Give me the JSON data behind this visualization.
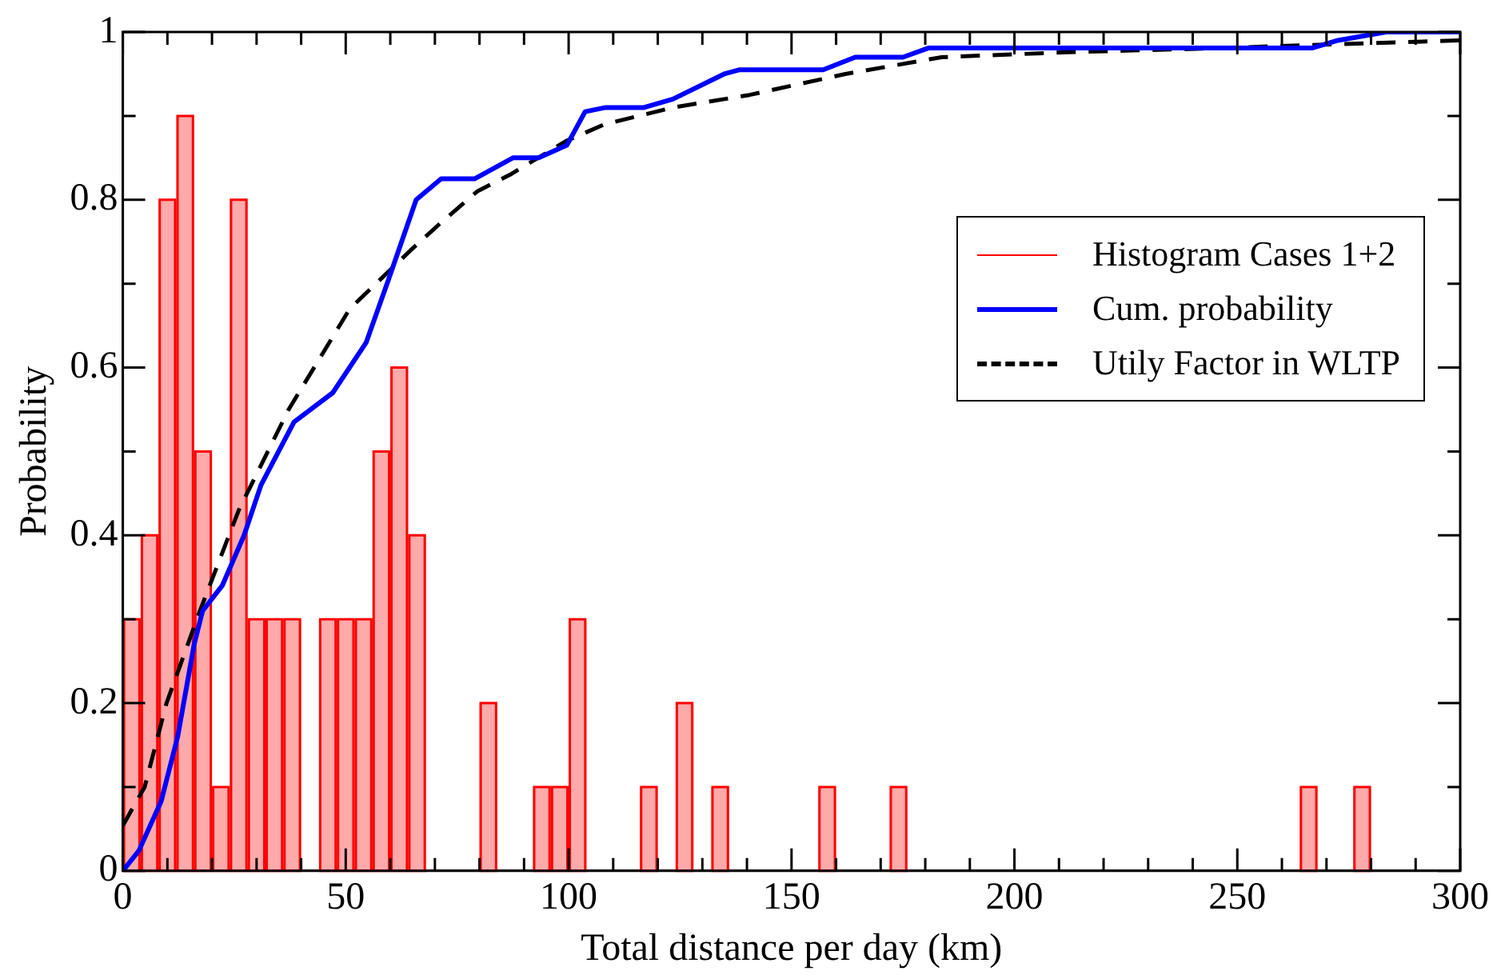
{
  "chart_data": {
    "type": "histogram",
    "xlabel": "Total distance per day (km)",
    "ylabel": "Probability",
    "xlim": [
      0,
      300
    ],
    "ylim": [
      0,
      1
    ],
    "xticks": [
      0,
      {
        "value": 10,
        "label": null
      },
      {
        "value": 20,
        "label": null
      },
      {
        "value": 30,
        "label": null
      },
      {
        "value": 40,
        "label": null
      },
      50,
      {
        "value": 60,
        "label": null
      },
      {
        "value": 70,
        "label": null
      },
      {
        "value": 80,
        "label": null
      },
      {
        "value": 90,
        "label": null
      },
      100,
      {
        "value": 110,
        "label": null
      },
      {
        "value": 120,
        "label": null
      },
      {
        "value": 130,
        "label": null
      },
      {
        "value": 140,
        "label": null
      },
      150,
      {
        "value": 160,
        "label": null
      },
      {
        "value": 170,
        "label": null
      },
      {
        "value": 180,
        "label": null
      },
      {
        "value": 190,
        "label": null
      },
      200,
      {
        "value": 210,
        "label": null
      },
      {
        "value": 220,
        "label": null
      },
      {
        "value": 230,
        "label": null
      },
      {
        "value": 240,
        "label": null
      },
      250,
      {
        "value": 260,
        "label": null
      },
      {
        "value": 270,
        "label": null
      },
      {
        "value": 280,
        "label": null
      },
      {
        "value": 290,
        "label": null
      },
      300
    ],
    "yticks": [
      0,
      {
        "value": 0.1,
        "label": null
      },
      0.2,
      {
        "value": 0.3,
        "label": null
      },
      0.4,
      {
        "value": 0.5,
        "label": null
      },
      0.6,
      {
        "value": 0.7,
        "label": null
      },
      0.8,
      {
        "value": 0.9,
        "label": null
      },
      1
    ],
    "grid": false,
    "legend": "right",
    "marker": "none",
    "series": [
      {
        "type": "histogram",
        "name": "Histogram Cases 1+2",
        "color": "#ff0000",
        "bins": [
          0,
          4,
          8,
          12,
          16,
          20,
          24,
          28,
          32,
          36,
          40,
          44,
          48,
          52,
          56,
          60,
          64,
          68,
          72,
          76,
          80,
          84,
          88,
          92,
          96,
          100,
          104,
          108,
          112,
          116,
          120,
          124,
          128,
          132,
          136,
          140,
          144,
          148,
          152,
          156,
          160,
          164,
          168,
          172,
          176,
          180,
          184,
          188,
          192,
          196,
          200,
          204,
          208,
          212,
          216,
          220,
          224,
          228,
          232,
          236,
          240,
          244,
          248,
          252,
          256,
          260,
          264,
          268,
          272,
          276,
          280
        ],
        "values": [
          0.3,
          0.4,
          0.8,
          0.9,
          0.5,
          0.1,
          0.8,
          0.3,
          0.3,
          0.3,
          0,
          0.3,
          0.3,
          0.3,
          0.5,
          0.6,
          0.4,
          0,
          0,
          0,
          0.2,
          0,
          0,
          0.1,
          0.1,
          0.3,
          0,
          0,
          0,
          0.1,
          0,
          0.2,
          0,
          0.1,
          0,
          0,
          0,
          0,
          0,
          0.1,
          0,
          0,
          0,
          0.1,
          0,
          0,
          0,
          0,
          0,
          0,
          0,
          0,
          0,
          0,
          0,
          0,
          0,
          0,
          0,
          0,
          0,
          0,
          0,
          0,
          0,
          0,
          0.1,
          0,
          0,
          0.1
        ]
      },
      {
        "type": "line",
        "name": "Cum. probability",
        "color": "#0000ff",
        "line_style": "solid",
        "x": [
          0,
          3.6,
          8.6,
          12.3,
          16,
          17.9,
          22.3,
          27.2,
          31,
          38.4,
          47.1,
          54.6,
          59.6,
          65.8,
          71.4,
          78.9,
          87.5,
          93.3,
          99.6,
          103.7,
          108.3,
          116.9,
          123.4,
          134.9,
          138.4,
          157.1,
          164.3,
          175,
          180.8,
          266.9,
          272.6,
          283.4,
          300
        ],
        "values": [
          0,
          0.024,
          0.083,
          0.16,
          0.27,
          0.31,
          0.34,
          0.4,
          0.46,
          0.535,
          0.57,
          0.63,
          0.705,
          0.8,
          0.825,
          0.825,
          0.85,
          0.85,
          0.865,
          0.905,
          0.91,
          0.91,
          0.92,
          0.95,
          0.955,
          0.955,
          0.97,
          0.97,
          0.981,
          0.981,
          0.99,
          1,
          1
        ]
      },
      {
        "type": "line",
        "name": "Utily Factor in WLTP",
        "color": "#000000",
        "line_style": "dashed",
        "x": [
          0,
          4.9,
          9.8,
          17.3,
          26,
          37.2,
          50.9,
          64.6,
          70.8,
          79.5,
          86.9,
          99.4,
          108.1,
          123.4,
          140.6,
          162.1,
          183.7,
          212.3,
          241,
          269.8,
          300
        ],
        "values": [
          0.054,
          0.1,
          0.2,
          0.31,
          0.43,
          0.55,
          0.67,
          0.74,
          0.77,
          0.81,
          0.83,
          0.87,
          0.89,
          0.91,
          0.925,
          0.95,
          0.97,
          0.976,
          0.98,
          0.985,
          0.99
        ]
      }
    ]
  }
}
